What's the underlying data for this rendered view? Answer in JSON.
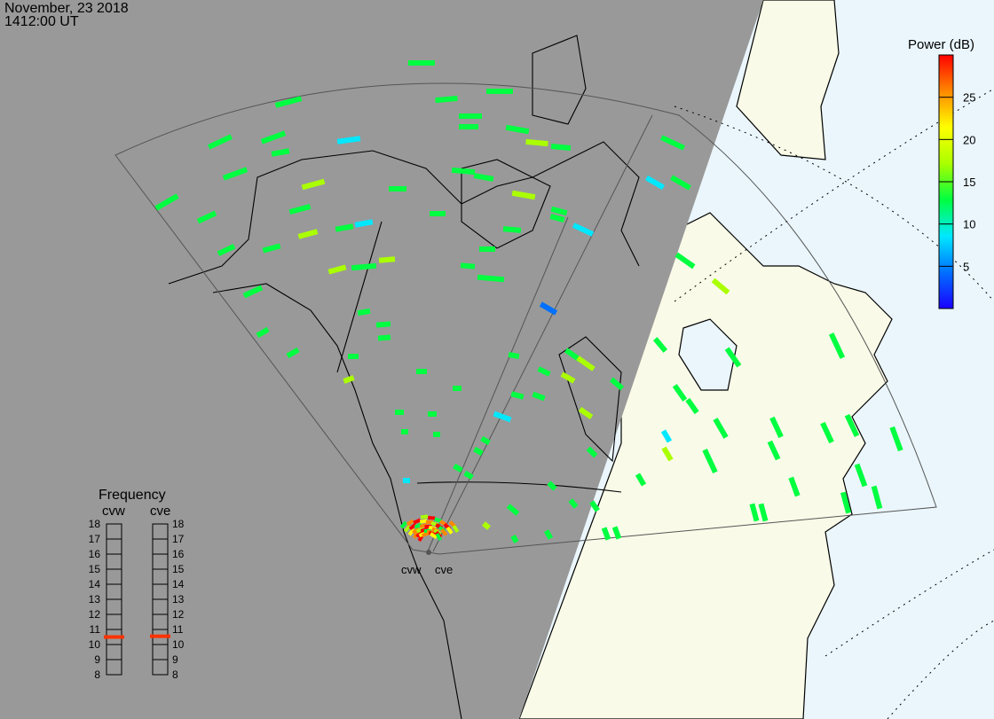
{
  "header": {
    "date": "November, 23 2018",
    "time": "1412:00 UT"
  },
  "colorbar": {
    "title": "Power (dB)",
    "range": [
      0,
      30
    ],
    "ticks": [
      "25",
      "20",
      "15",
      "10",
      "5"
    ],
    "tick_values": [
      25,
      20,
      15,
      10,
      5
    ],
    "colors": [
      "#1a00ff",
      "#0070ff",
      "#00e8ff",
      "#00ff40",
      "#aaff00",
      "#ffff00",
      "#ff8800",
      "#ff0000"
    ]
  },
  "radars": [
    {
      "name": "cvw",
      "frequency_mhz": 10.5
    },
    {
      "name": "cve",
      "frequency_mhz": 10.55
    }
  ],
  "frequency_panel": {
    "title": "Frequency",
    "scale": [
      "18",
      "17",
      "16",
      "15",
      "14",
      "13",
      "12",
      "11",
      "10",
      "9",
      "8"
    ],
    "range_mhz": [
      8,
      18
    ],
    "marker_color": "#ff3300"
  },
  "map": {
    "night_color": "#999999",
    "land_color": "#fafae8",
    "ocean_color": "#eaf6fc"
  }
}
